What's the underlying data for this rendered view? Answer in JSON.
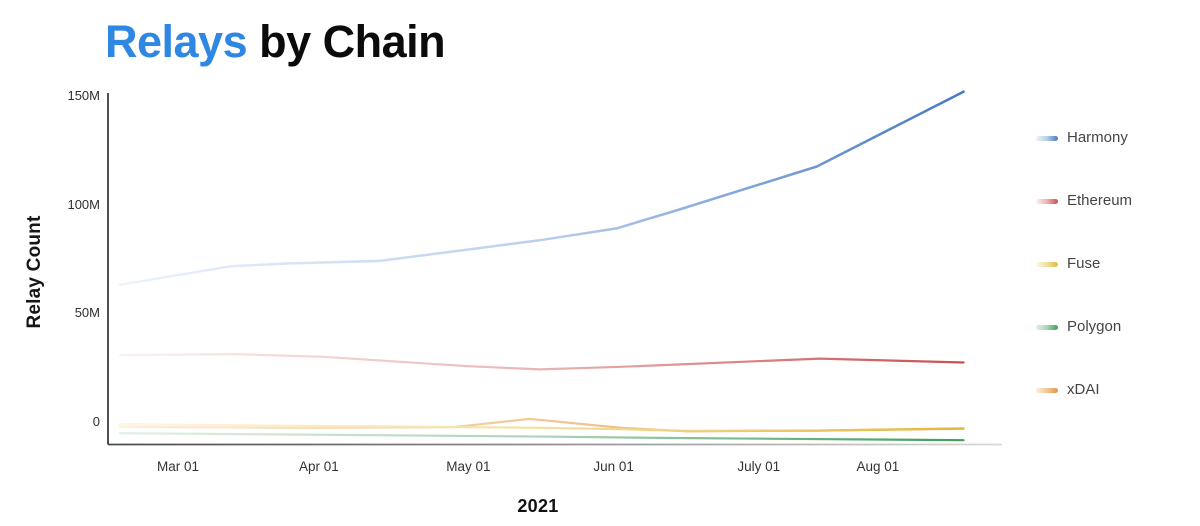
{
  "title": {
    "highlight": "Relays",
    "rest": " by Chain"
  },
  "colors": {
    "title_accent": "#2e87e3",
    "title_rest": "#0b0b0b",
    "axis_dark": "#4a4a4a",
    "axis_light": "#d8d8d8"
  },
  "chart_data": {
    "type": "line",
    "title": "Relays by Chain",
    "xlabel": "2021",
    "ylabel": "Relay Count",
    "x_unit": "months since Mar 01, 2021 (negative = late Feb)",
    "ylim": [
      -12,
      160
    ],
    "grid": false,
    "legend_position": "right",
    "yticks": [
      {
        "v": 150,
        "label": "150M"
      },
      {
        "v": 100,
        "label": "100M"
      },
      {
        "v": 50,
        "label": "50M"
      },
      {
        "v": 0,
        "label": "0"
      }
    ],
    "xticks": [
      {
        "m": 0,
        "label": "Mar 01"
      },
      {
        "m": 0.97,
        "label": "Apr 01"
      },
      {
        "m": 2.0,
        "label": "May 01"
      },
      {
        "m": 3.0,
        "label": "Jun 01"
      },
      {
        "m": 4.0,
        "label": "July 01"
      },
      {
        "m": 4.82,
        "label": "Aug 01"
      }
    ],
    "series": [
      {
        "name": "xDAI",
        "unit": "M relays",
        "stops": [
          "#fdeedd",
          "#f3c795",
          "#e5914b"
        ],
        "points": [
          {
            "m": -0.4,
            "v": -2.4
          },
          {
            "m": 0.8,
            "v": -3.0
          },
          {
            "m": 1.9,
            "v": -2.6
          },
          {
            "m": 2.42,
            "v": 1.2
          },
          {
            "m": 3.05,
            "v": -2.9
          },
          {
            "m": 3.5,
            "v": -4.5
          },
          {
            "m": 4.4,
            "v": -4.2
          },
          {
            "m": 5.41,
            "v": -3.3
          }
        ]
      },
      {
        "name": "Polygon",
        "unit": "M relays",
        "stops": [
          "#e2f1e7",
          "#abd3b8",
          "#3f9e57"
        ],
        "points": [
          {
            "m": -0.4,
            "v": -5.4
          },
          {
            "m": 1.2,
            "v": -6.2
          },
          {
            "m": 2.6,
            "v": -7.0
          },
          {
            "m": 3.4,
            "v": -7.6
          },
          {
            "m": 5.41,
            "v": -8.6
          }
        ]
      },
      {
        "name": "Fuse",
        "unit": "M relays",
        "stops": [
          "#fdf7e0",
          "#f2dfa0",
          "#e4b93a"
        ],
        "points": [
          {
            "m": -0.4,
            "v": -1.2
          },
          {
            "m": 0.5,
            "v": -1.8
          },
          {
            "m": 1.6,
            "v": -2.4
          },
          {
            "m": 2.49,
            "v": -2.9
          },
          {
            "m": 3.1,
            "v": -3.6
          },
          {
            "m": 3.5,
            "v": -4.4
          },
          {
            "m": 4.4,
            "v": -4.2
          },
          {
            "m": 5.41,
            "v": -3.2
          }
        ]
      },
      {
        "name": "Ethereum",
        "unit": "M relays",
        "stops": [
          "#fdf0f0",
          "#eab4b4",
          "#c94f4f"
        ],
        "points": [
          {
            "m": -0.4,
            "v": 30.6
          },
          {
            "m": 0.4,
            "v": 31.0
          },
          {
            "m": 1.0,
            "v": 29.8
          },
          {
            "m": 2.0,
            "v": 25.5
          },
          {
            "m": 2.49,
            "v": 24.0
          },
          {
            "m": 3.05,
            "v": 25.2
          },
          {
            "m": 3.42,
            "v": 26.2
          },
          {
            "m": 4.42,
            "v": 29.0
          },
          {
            "m": 5.41,
            "v": 27.2
          }
        ]
      },
      {
        "name": "Harmony",
        "unit": "M relays",
        "stops": [
          "#edf3fc",
          "#b9cfec",
          "#4678c2"
        ],
        "points": [
          {
            "m": -0.4,
            "v": 63.0
          },
          {
            "m": 0.36,
            "v": 71.5
          },
          {
            "m": 0.75,
            "v": 72.8
          },
          {
            "m": 1.39,
            "v": 74.0
          },
          {
            "m": 2.49,
            "v": 83.5
          },
          {
            "m": 3.02,
            "v": 89.0
          },
          {
            "m": 3.42,
            "v": 97.0
          },
          {
            "m": 4.4,
            "v": 117.5
          },
          {
            "m": 5.41,
            "v": 152.0
          }
        ]
      }
    ],
    "legend_order": [
      "Harmony",
      "Ethereum",
      "Fuse",
      "Polygon",
      "xDAI"
    ]
  }
}
